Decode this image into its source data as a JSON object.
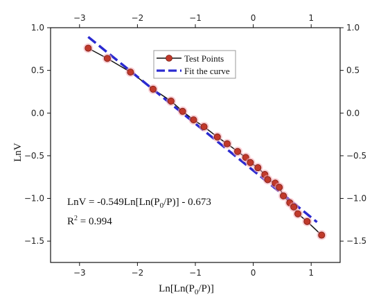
{
  "chart_data": {
    "type": "scatter",
    "xlabel": "Ln[Ln(P0/P)]",
    "ylabel": "LnV",
    "xlim": [
      -3.5,
      1.5
    ],
    "ylim": [
      -1.75,
      1.0
    ],
    "xticks": [
      -3,
      -2,
      -1,
      0,
      1
    ],
    "yticks": [
      1.0,
      0.5,
      0.0,
      -0.5,
      -1.0,
      -1.5
    ],
    "x_tick_labels": [
      "−3",
      "−2",
      "−1",
      "0",
      "1"
    ],
    "y_tick_labels": [
      "1.0",
      "0.5",
      "0.0",
      "−0.5",
      "−1.0",
      "−1.5"
    ],
    "top_axis_mirrored": true,
    "right_axis_mirrored": true,
    "legend_position": "top-center",
    "series": [
      {
        "name": "Test Points",
        "kind": "points",
        "color": "#c0392b",
        "x": [
          -2.85,
          -2.52,
          -2.12,
          -1.73,
          -1.42,
          -1.22,
          -1.03,
          -0.85,
          -0.62,
          -0.45,
          -0.27,
          -0.13,
          -0.05,
          0.08,
          0.2,
          0.25,
          0.38,
          0.45,
          0.52,
          0.63,
          0.7,
          0.77,
          0.93,
          1.18
        ],
        "y": [
          0.76,
          0.64,
          0.48,
          0.28,
          0.14,
          0.02,
          -0.08,
          -0.16,
          -0.28,
          -0.36,
          -0.45,
          -0.52,
          -0.58,
          -0.64,
          -0.72,
          -0.78,
          -0.82,
          -0.87,
          -0.97,
          -1.05,
          -1.1,
          -1.18,
          -1.27,
          -1.43
        ]
      },
      {
        "name": "Fit the curve",
        "kind": "line",
        "color": "#2a2ad0",
        "x": [
          -2.85,
          1.1
        ],
        "y": [
          0.892,
          -1.277
        ]
      }
    ]
  },
  "annotations": {
    "equation": "LnV = -0.549Ln[Ln(P",
    "equation_sub": "0",
    "equation_tail": "/P)] - 0.673",
    "r2_prefix": "R",
    "r2_sup": "2",
    "r2_tail": " = 0.994"
  },
  "legend": {
    "items": [
      "Test Points",
      "Fit the curve"
    ]
  },
  "xlabel_parts": {
    "pre": "Ln[Ln(P",
    "sub": "0",
    "post": "/P)]"
  },
  "colors": {
    "points": "#c0392b",
    "fit": "#2a2ad0",
    "connector": "#111111"
  }
}
